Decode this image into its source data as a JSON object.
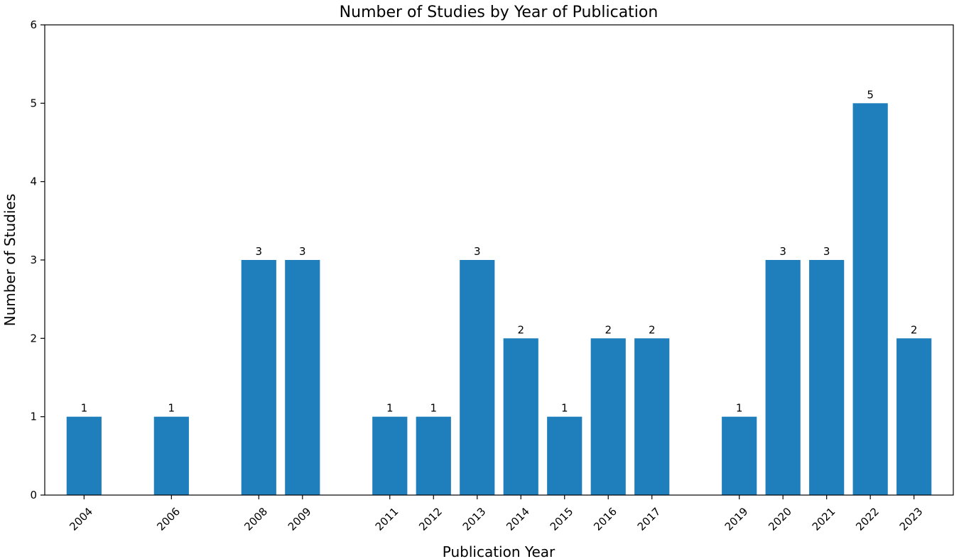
{
  "chart_data": {
    "type": "bar",
    "title": "Number of Studies by Year of Publication",
    "xlabel": "Publication Year",
    "ylabel": "Number of Studies",
    "x": [
      2004,
      2006,
      2008,
      2009,
      2011,
      2012,
      2013,
      2014,
      2015,
      2016,
      2017,
      2019,
      2020,
      2021,
      2022,
      2023
    ],
    "values": [
      1,
      1,
      3,
      3,
      1,
      1,
      3,
      2,
      1,
      2,
      2,
      1,
      3,
      3,
      5,
      2
    ],
    "ylim": [
      0,
      6
    ],
    "yticks": [
      0,
      1,
      2,
      3,
      4,
      5,
      6
    ],
    "xlim": [
      2003.1,
      2023.9
    ],
    "bar_width_years": 0.8,
    "bar_color": "#1f7fbd",
    "grid": false,
    "legend": "none",
    "xtick_rotation": "45 degrees",
    "data_labels": true
  }
}
